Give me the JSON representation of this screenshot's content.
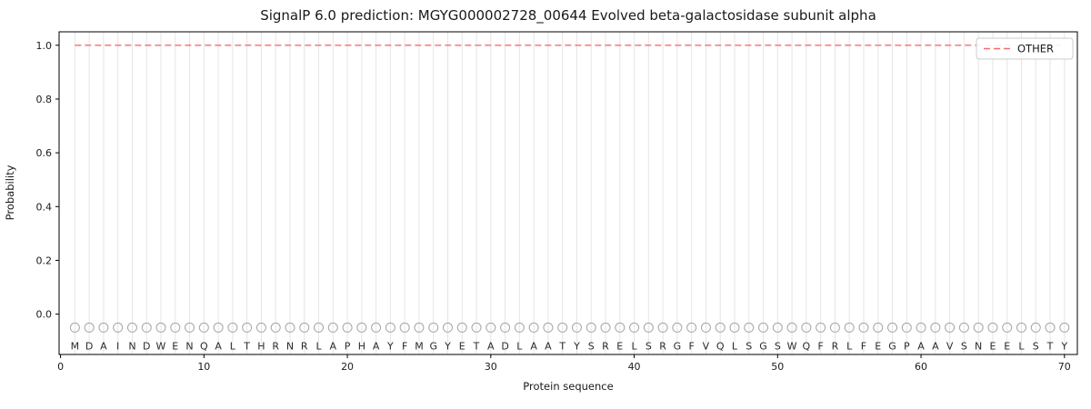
{
  "title": "SignalP 6.0 prediction: MGYG000002728_00644 Evolved beta-galactosidase subunit alpha",
  "chart_data": {
    "type": "line",
    "title": "SignalP 6.0 prediction: MGYG000002728_00644 Evolved beta-galactosidase subunit alpha",
    "xlabel": "Protein sequence",
    "ylabel": "Probability",
    "xlim": [
      -0.1,
      70.9
    ],
    "ylim": [
      -0.15,
      1.05
    ],
    "xticks": [
      0,
      10,
      20,
      30,
      40,
      50,
      60,
      70
    ],
    "yticks": [
      0.0,
      0.2,
      0.4,
      0.6,
      0.8,
      1.0
    ],
    "grid": "vertical-per-residue",
    "sequence": "MDAINDWENQALTHRNRLAPHAYFMGYETADLAATYSRELSRGFVQLSGSWQFRLFEGPAAVSNEELSTY",
    "residue_marker": {
      "shape": "circle",
      "y": -0.05,
      "stroke_color": "#a6a6a6"
    },
    "residue_letter_y": -0.105,
    "series": [
      {
        "name": "OTHER",
        "style": "dashed",
        "color": "#f46d6d",
        "x_start": 1,
        "x_end": 70,
        "value": 1.0
      }
    ],
    "legend": {
      "position": "upper right",
      "entries": [
        "OTHER"
      ]
    },
    "colors": {
      "gridline": "#e5e5e5",
      "axis": "#000000",
      "legend_border": "#cccccc"
    }
  }
}
